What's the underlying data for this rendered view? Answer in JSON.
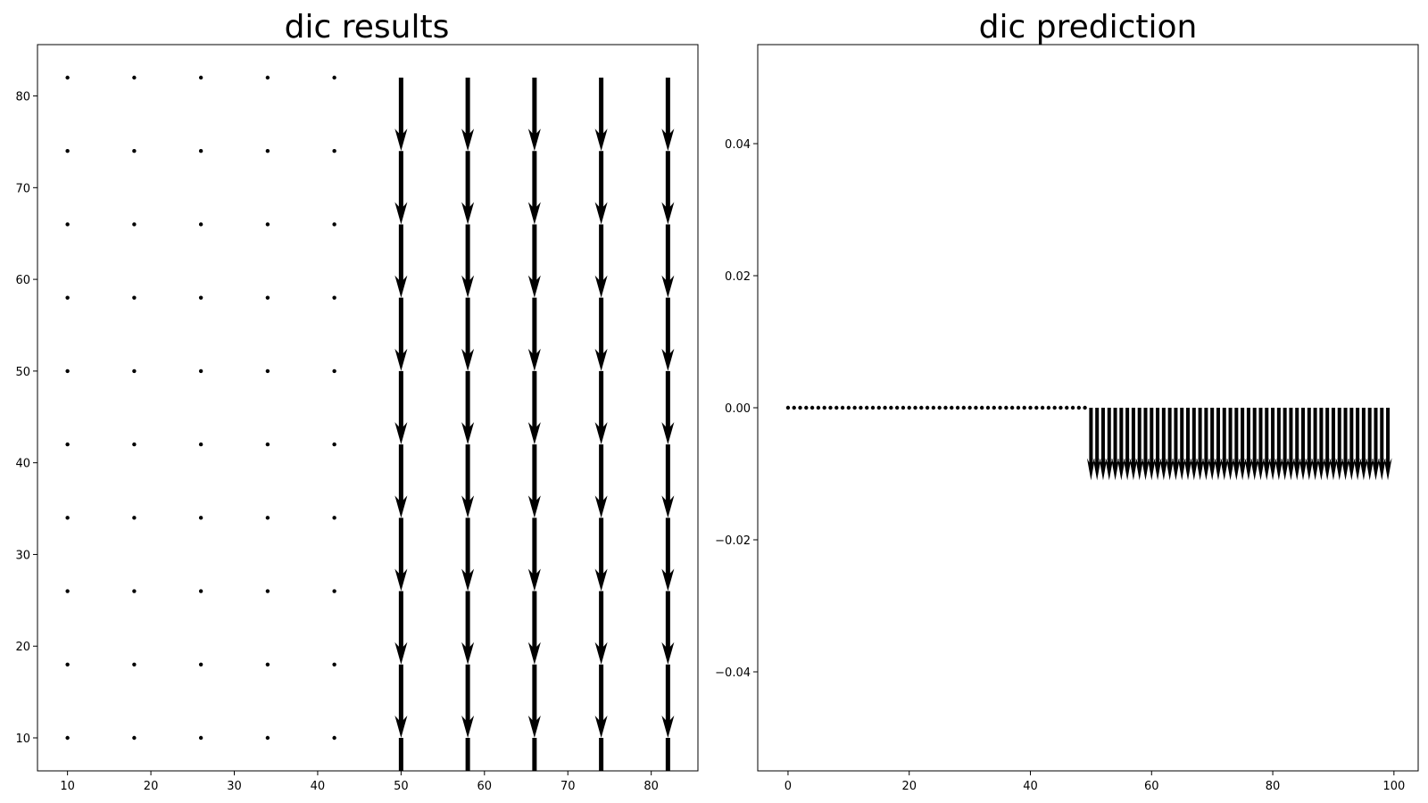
{
  "chart_data": [
    {
      "type": "quiver",
      "title": "dic results",
      "xlabel": "",
      "ylabel": "",
      "xlim": [
        6.4,
        85.6
      ],
      "ylim": [
        6.4,
        85.6
      ],
      "xticks": [
        10,
        20,
        30,
        40,
        50,
        60,
        70,
        80
      ],
      "yticks": [
        10,
        20,
        30,
        40,
        50,
        60,
        70,
        80
      ],
      "xticklabels": [
        "10",
        "20",
        "30",
        "40",
        "50",
        "60",
        "70",
        "80"
      ],
      "yticklabels": [
        "10",
        "20",
        "30",
        "40",
        "50",
        "60",
        "70",
        "80"
      ],
      "grid": false,
      "x_positions": [
        10,
        18,
        26,
        34,
        42,
        50,
        58,
        66,
        74,
        82
      ],
      "y_positions": [
        10,
        18,
        26,
        34,
        42,
        50,
        58,
        66,
        74,
        82
      ],
      "u": 0,
      "v_by_column": [
        0,
        0,
        0,
        0,
        0,
        -8,
        -8,
        -8,
        -8,
        -8
      ],
      "color": "#000000"
    },
    {
      "type": "quiver",
      "title": "dic prediction",
      "xlabel": "",
      "ylabel": "",
      "xlim": [
        -5,
        104
      ],
      "ylim": [
        -0.055,
        0.055
      ],
      "xticks": [
        0,
        20,
        40,
        60,
        80,
        100
      ],
      "yticks": [
        0.04,
        0.02,
        0.0,
        -0.02,
        -0.04
      ],
      "xticklabels": [
        "0",
        "20",
        "40",
        "60",
        "80",
        "100"
      ],
      "yticklabels": [
        "0.04",
        "0.02",
        "0.00",
        "−0.02",
        "−0.04"
      ],
      "grid": false,
      "x": {
        "start": 0,
        "stop": 99,
        "step": 1
      },
      "y": 0.0,
      "u": 0,
      "v_zero_until_x": 49,
      "v_after": -0.011,
      "color": "#000000"
    }
  ]
}
